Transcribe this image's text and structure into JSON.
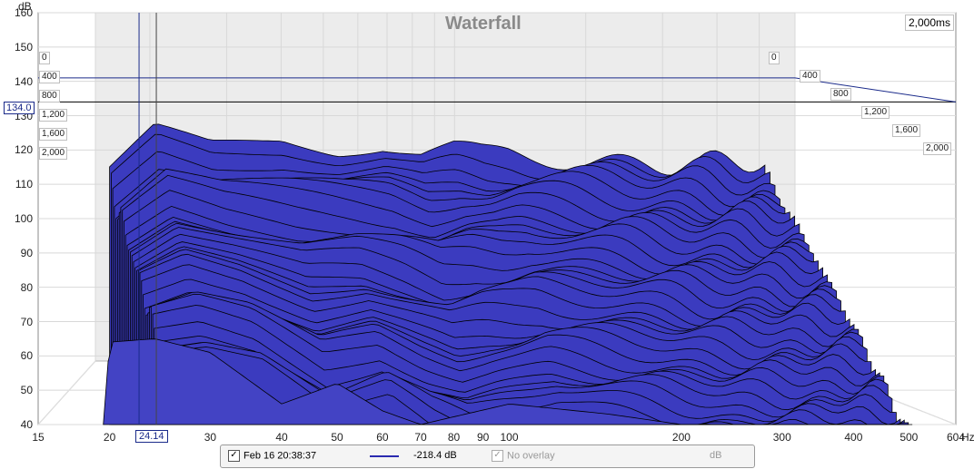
{
  "chart_data": {
    "type": "area",
    "title": "Waterfall",
    "ylabel": "dB",
    "xlabel": "Hz",
    "ylim": [
      40,
      160
    ],
    "xlim": [
      15,
      604
    ],
    "x_scale": "log",
    "y_ticks": [
      "160",
      "150",
      "140",
      "130",
      "120",
      "110",
      "100",
      "90",
      "80",
      "70",
      "60",
      "50",
      "40"
    ],
    "x_ticks": [
      "15",
      "20",
      "30",
      "40",
      "50",
      "60",
      "70",
      "80",
      "90",
      "100",
      "200",
      "300",
      "400",
      "500",
      "604"
    ],
    "time_ticks": [
      "0",
      "400",
      "800",
      "1,200",
      "1,600",
      "2,000"
    ],
    "time_range_label": "2,000ms",
    "cursor": {
      "y_value": "134.0",
      "x_value": "24.14"
    },
    "series": [
      {
        "values": [
          [
            20,
            111
          ],
          [
            24,
            124
          ],
          [
            30,
            120
          ],
          [
            40,
            122
          ],
          [
            50,
            119
          ],
          [
            60,
            120
          ],
          [
            70,
            117
          ],
          [
            80,
            119
          ],
          [
            90,
            118
          ],
          [
            100,
            119
          ],
          [
            150,
            118
          ],
          [
            200,
            116
          ],
          [
            250,
            115
          ],
          [
            280,
            114
          ]
        ]
      }
    ],
    "back_slice": [
      [
        20,
        111
      ],
      [
        24,
        124
      ],
      [
        30,
        120
      ],
      [
        40,
        122
      ],
      [
        50,
        119
      ],
      [
        60,
        120
      ],
      [
        70,
        117
      ],
      [
        80,
        119
      ],
      [
        90,
        118
      ],
      [
        100,
        119
      ],
      [
        150,
        118
      ],
      [
        200,
        116
      ],
      [
        250,
        115
      ],
      [
        280,
        114
      ]
    ],
    "front_slice": [
      [
        19.5,
        40
      ],
      [
        20,
        64
      ],
      [
        24,
        65
      ],
      [
        30,
        61
      ],
      [
        40,
        46
      ],
      [
        50,
        52
      ],
      [
        60,
        44
      ],
      [
        70,
        40
      ],
      [
        100,
        46
      ],
      [
        150,
        43
      ],
      [
        200,
        40
      ]
    ]
  },
  "legend": {
    "entry_label": "Feb 16 20:38:37",
    "entry_value": "-218.4 dB",
    "overlay_label": "No overlay",
    "overlay_unit": "dB"
  },
  "colors": {
    "fill": "#3b3bbf",
    "line": "#000000",
    "grid": "#d0d0d0",
    "cursor": "#1a2a8a"
  }
}
